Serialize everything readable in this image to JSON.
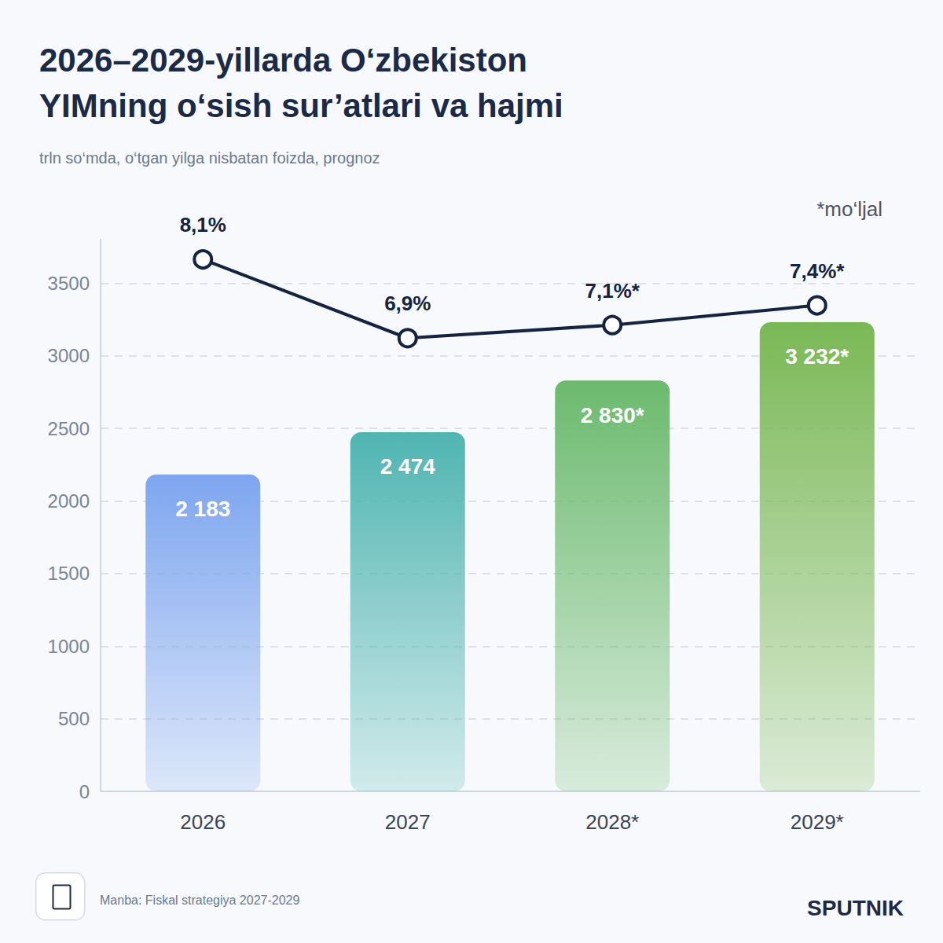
{
  "chart_data": {
    "type": "bar",
    "title": "2026–2029-yillarda O‘zbekiston YIMning o‘sish sur’atlari va hajmi",
    "subtitle": "trln so‘mda, o‘tgan yilga nisbatan foizda, prognoz",
    "note": "*mo‘ljal",
    "source": "Manba: Fiskal strategiya 2027-2029",
    "brand": "SPUTNIK",
    "categories": [
      "2026",
      "2027",
      "2028*",
      "2029*"
    ],
    "series": [
      {
        "type": "bar",
        "colors": [
          "#7ea6ef",
          "#4fb5b1",
          "#6cba6e",
          "#7ab855"
        ],
        "values": [
          2183,
          2474,
          2830,
          3232
        ],
        "value_labels": [
          "2 183",
          "2 474",
          "2 830*",
          "3 232*"
        ]
      },
      {
        "type": "line",
        "axis": "y2",
        "color": "#14233f",
        "marker": "circle",
        "values": [
          8.1,
          6.9,
          7.1,
          7.4
        ],
        "value_labels": [
          "8,1%",
          "6,9%",
          "7,1%*",
          "7,4%*"
        ]
      }
    ],
    "ylim": [
      0,
      3800
    ],
    "yticks": [
      0,
      500,
      1000,
      1500,
      2000,
      2500,
      3000,
      3500
    ],
    "y2lim": [
      0,
      8.4
    ],
    "y2ticks": [],
    "grid": true,
    "data_labels": true
  }
}
